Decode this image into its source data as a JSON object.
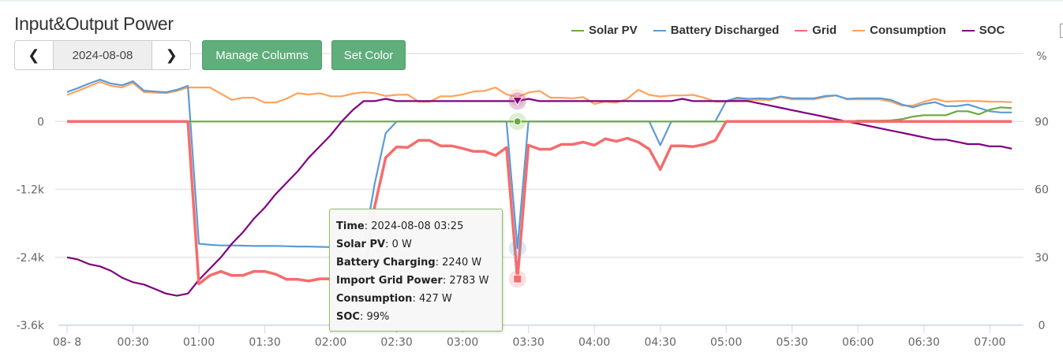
{
  "header": {
    "title": "Input&Output Power"
  },
  "date_nav": {
    "prev_icon": "chevron-left-icon",
    "next_icon": "chevron-right-icon",
    "date": "2024-08-08"
  },
  "toolbar": {
    "manage_columns": "Manage Columns",
    "set_color": "Set Color"
  },
  "tooltip": {
    "rows": [
      {
        "label": "Time",
        "value": "2024-08-08 03:25"
      },
      {
        "label": "Solar PV",
        "value": "0 W"
      },
      {
        "label": "Battery Charging",
        "value": "2240 W"
      },
      {
        "label": "Import Grid Power",
        "value": "2783 W"
      },
      {
        "label": "Consumption",
        "value": "427 W"
      },
      {
        "label": "SOC",
        "value": "99%"
      }
    ],
    "hover_index": 41
  },
  "chart_data": {
    "type": "line",
    "title": "Input&Output Power",
    "x_start": "00:00",
    "x_step_minutes": 5,
    "x_tick_labels": [
      "08- 8",
      "00:30",
      "01:00",
      "01:30",
      "02:00",
      "02:30",
      "03:00",
      "03:30",
      "04:00",
      "04:30",
      "05:00",
      "05:30",
      "06:00",
      "06:30",
      "07:00"
    ],
    "y_left": {
      "ylim": [
        -3600,
        1200
      ],
      "ticks": [
        {
          "v": 0,
          "label": "0"
        },
        {
          "v": -1200,
          "label": "-1.2k"
        },
        {
          "v": -2400,
          "label": "-2.4k"
        },
        {
          "v": -3600,
          "label": "-3.6k"
        }
      ],
      "unit": "W"
    },
    "y_right": {
      "ylim": [
        0,
        120
      ],
      "ticks": [
        {
          "v": 0,
          "label": "0"
        },
        {
          "v": 30,
          "label": "30"
        },
        {
          "v": 60,
          "label": "60"
        },
        {
          "v": 90,
          "label": "90"
        }
      ],
      "label": "%"
    },
    "grid": true,
    "legend_position": "top-right",
    "series": [
      {
        "name": "Solar PV",
        "color": "#6aab3c",
        "axis": "left",
        "values": [
          0,
          0,
          0,
          0,
          0,
          0,
          0,
          0,
          0,
          0,
          0,
          0,
          0,
          0,
          0,
          0,
          0,
          0,
          0,
          0,
          0,
          0,
          0,
          0,
          0,
          0,
          0,
          0,
          0,
          0,
          0,
          0,
          0,
          0,
          0,
          0,
          0,
          0,
          0,
          0,
          0,
          0,
          0,
          0,
          0,
          0,
          0,
          0,
          0,
          0,
          0,
          0,
          0,
          0,
          0,
          0,
          0,
          0,
          0,
          0,
          0,
          0,
          0,
          0,
          0,
          0,
          0,
          0,
          0,
          0,
          0,
          0,
          15,
          15,
          15,
          20,
          40,
          85,
          110,
          110,
          110,
          180,
          180,
          125,
          210,
          250,
          235
        ]
      },
      {
        "name": "Battery Discharged",
        "color": "#5b9bd5",
        "axis": "left",
        "values": [
          520,
          590,
          670,
          740,
          670,
          640,
          710,
          545,
          530,
          515,
          560,
          630,
          -2160,
          -2180,
          -2190,
          -2190,
          -2195,
          -2200,
          -2200,
          -2200,
          -2205,
          -2210,
          -2210,
          -2215,
          -2220,
          -2225,
          -2230,
          -2230,
          -1100,
          -210,
          0,
          0,
          0,
          0,
          0,
          0,
          0,
          0,
          0,
          0,
          0,
          -2240,
          0,
          0,
          0,
          0,
          0,
          0,
          0,
          0,
          0,
          0,
          0,
          0,
          -420,
          0,
          0,
          0,
          0,
          0,
          360,
          420,
          400,
          410,
          400,
          440,
          410,
          410,
          410,
          450,
          460,
          400,
          410,
          410,
          410,
          380,
          300,
          250,
          310,
          340,
          270,
          270,
          300,
          240,
          180,
          160,
          160
        ]
      },
      {
        "name": "Grid",
        "color": "#f56c6c",
        "axis": "left",
        "values": [
          0,
          0,
          0,
          0,
          0,
          0,
          0,
          0,
          0,
          0,
          0,
          0,
          -2870,
          -2720,
          -2650,
          -2720,
          -2720,
          -2650,
          -2650,
          -2700,
          -2790,
          -2790,
          -2820,
          -2780,
          -2780,
          -2760,
          -2760,
          -2700,
          -1500,
          -640,
          -450,
          -460,
          -335,
          -335,
          -430,
          -430,
          -475,
          -530,
          -530,
          -600,
          -460,
          -2783,
          -420,
          -490,
          -490,
          -405,
          -405,
          -365,
          -420,
          -305,
          -350,
          -295,
          -365,
          -490,
          -850,
          -430,
          -430,
          -445,
          -405,
          -335,
          0,
          0,
          0,
          0,
          0,
          0,
          0,
          0,
          0,
          0,
          0,
          0,
          0,
          0,
          0,
          0,
          0,
          0,
          0,
          0,
          0,
          0,
          0,
          0,
          0,
          0,
          0
        ]
      },
      {
        "name": "Consumption",
        "color": "#ffa35c",
        "axis": "left",
        "values": [
          470,
          540,
          620,
          700,
          630,
          600,
          680,
          520,
          510,
          500,
          540,
          600,
          600,
          600,
          490,
          380,
          420,
          420,
          335,
          335,
          405,
          500,
          475,
          500,
          445,
          445,
          490,
          515,
          500,
          450,
          470,
          475,
          350,
          350,
          445,
          445,
          475,
          530,
          540,
          600,
          480,
          427,
          510,
          540,
          420,
          420,
          410,
          430,
          310,
          350,
          330,
          400,
          560,
          470,
          440,
          460,
          460,
          470,
          420,
          350,
          350,
          390,
          380,
          380,
          380,
          430,
          390,
          390,
          390,
          430,
          460,
          390,
          390,
          390,
          390,
          350,
          280,
          280,
          350,
          400,
          350,
          360,
          360,
          360,
          350,
          350,
          340
        ]
      },
      {
        "name": "SOC",
        "color": "#800080",
        "axis": "right",
        "values": [
          30,
          29,
          27,
          26,
          24,
          21,
          19,
          18,
          16,
          14,
          13,
          14,
          20,
          25,
          30,
          36,
          41,
          47,
          52,
          58,
          63,
          68,
          74,
          79,
          84,
          90,
          95,
          99,
          99,
          100,
          99,
          99,
          99,
          99,
          99,
          99,
          99,
          99,
          99,
          99,
          99,
          99,
          100,
          99,
          99,
          99,
          99,
          99,
          99,
          99,
          99,
          99,
          99,
          99,
          99,
          99,
          100,
          99,
          99,
          99,
          99,
          99,
          99,
          98,
          97,
          96,
          95,
          94,
          93,
          92,
          91,
          90,
          89,
          88,
          87,
          86,
          85,
          84,
          83,
          82,
          82,
          81,
          80,
          80,
          79,
          79,
          78
        ]
      }
    ]
  }
}
